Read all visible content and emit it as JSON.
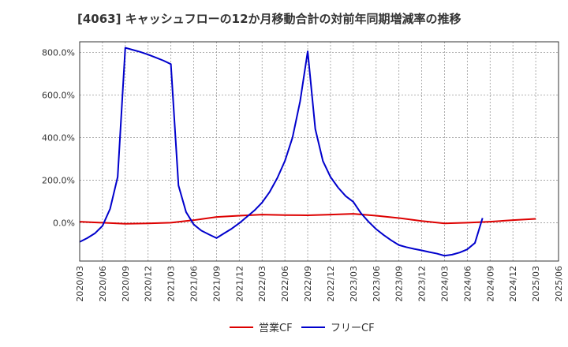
{
  "chart_data": {
    "type": "line",
    "title": "[4063]  キャッシュフローの12か月移動合計の対前年同期増減率の推移",
    "xlabel": "",
    "ylabel": "",
    "ylim": [
      -180,
      850
    ],
    "yticks": [
      0,
      200,
      400,
      600,
      800
    ],
    "ytick_labels": [
      "0.0%",
      "200.0%",
      "400.0%",
      "600.0%",
      "800.0%"
    ],
    "x_ticks": [
      "2020/03",
      "2020/06",
      "2020/09",
      "2020/12",
      "2021/03",
      "2021/06",
      "2021/09",
      "2021/12",
      "2022/03",
      "2022/06",
      "2022/09",
      "2022/12",
      "2023/03",
      "2023/06",
      "2023/09",
      "2023/12",
      "2024/03",
      "2024/06",
      "2024/09",
      "2024/12",
      "2025/03",
      "2025/06"
    ],
    "grid": true,
    "legend_position": "bottom",
    "series": [
      {
        "name": "営業CF",
        "color": "#dd0000",
        "x": [
          "2020/03",
          "2020/06",
          "2020/09",
          "2020/12",
          "2021/03",
          "2021/06",
          "2021/09",
          "2021/12",
          "2022/03",
          "2022/06",
          "2022/09",
          "2022/12",
          "2023/03",
          "2023/06",
          "2023/09",
          "2023/12",
          "2024/03",
          "2024/06",
          "2024/09",
          "2024/12",
          "2025/03"
        ],
        "values": [
          5,
          0,
          -5,
          -3,
          0,
          12,
          27,
          33,
          38,
          36,
          35,
          38,
          42,
          33,
          22,
          8,
          -3,
          0,
          5,
          12,
          18
        ]
      },
      {
        "name": "フリーCF",
        "color": "#0000cc",
        "x": [
          "2020/03",
          "2020/04",
          "2020/05",
          "2020/06",
          "2020/07",
          "2020/08",
          "2020/09",
          "2020/10",
          "2020/11",
          "2020/12",
          "2021/01",
          "2021/02",
          "2021/03",
          "2021/04",
          "2021/05",
          "2021/06",
          "2021/07",
          "2021/08",
          "2021/09",
          "2021/10",
          "2021/11",
          "2021/12",
          "2022/01",
          "2022/02",
          "2022/03",
          "2022/04",
          "2022/05",
          "2022/06",
          "2022/07",
          "2022/08",
          "2022/09",
          "2022/10",
          "2022/11",
          "2022/12",
          "2023/01",
          "2023/02",
          "2023/03",
          "2023/04",
          "2023/05",
          "2023/06",
          "2023/07",
          "2023/08",
          "2023/09",
          "2023/10",
          "2023/11",
          "2023/12",
          "2024/01",
          "2024/02",
          "2024/03",
          "2024/04",
          "2024/05",
          "2024/06",
          "2024/07",
          "2024/08",
          "2024/09"
        ],
        "values": [
          -90,
          -72,
          -50,
          -15,
          65,
          215,
          822,
          812,
          802,
          790,
          776,
          762,
          745,
          175,
          50,
          -8,
          -37,
          -55,
          -72,
          -50,
          -28,
          -2,
          28,
          58,
          95,
          145,
          210,
          290,
          400,
          570,
          805,
          440,
          290,
          215,
          165,
          125,
          98,
          45,
          5,
          -30,
          -58,
          -83,
          -105,
          -115,
          -123,
          -130,
          -138,
          -145,
          -155,
          -150,
          -140,
          -125,
          -95,
          22,
          null
        ]
      }
    ]
  }
}
